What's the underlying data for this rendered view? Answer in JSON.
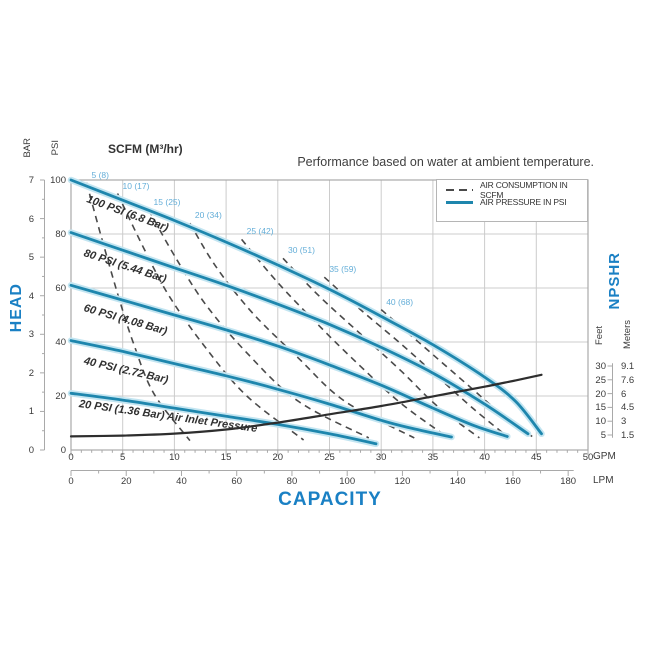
{
  "note": "Performance based on water at ambient temperature.",
  "scfm_title": "SCFM (M³/hr)",
  "legend": {
    "items": [
      {
        "label": "AIR CONSUMPTION IN SCFM",
        "style": "dashed"
      },
      {
        "label": "AIR PRESSURE IN PSI",
        "style": "solid"
      }
    ]
  },
  "colors": {
    "curve_blue": "#1e86ad",
    "halo_blue": "#c3e5f1",
    "label_blue": "#1a80c4",
    "dash_label_blue": "#64aed8",
    "dash_gray": "#4a4a4a",
    "npshr_black": "#2e2e2e",
    "grid": "#cccccc",
    "axis": "#a9a9a9",
    "text": "#3a3a3a"
  },
  "chart_data": {
    "type": "line",
    "title": "Performance based on water at ambient temperature.",
    "x_axis": {
      "label": "CAPACITY",
      "gpm_unit": "GPM",
      "lpm_unit": "LPM",
      "gpm_ticks": [
        0,
        5,
        10,
        15,
        20,
        25,
        30,
        35,
        40,
        45,
        50
      ],
      "lpm_ticks": [
        0,
        20,
        40,
        60,
        80,
        100,
        120,
        140,
        160,
        180
      ],
      "range_gpm": [
        0,
        50
      ],
      "grid": true
    },
    "y_axis": {
      "label": "HEAD",
      "bar_unit": "BAR",
      "psi_unit": "PSI",
      "bar_ticks": [
        0,
        1,
        2,
        3,
        4,
        5,
        6,
        7
      ],
      "psi_ticks": [
        0,
        20,
        40,
        60,
        80,
        100
      ],
      "range_psi": [
        0,
        100
      ]
    },
    "right_axis": {
      "label": "NPSHR",
      "feet_label": "Feet",
      "meters_label": "Meters",
      "feet_ticks": [
        30,
        25,
        20,
        15,
        10,
        5
      ],
      "meters_ticks": [
        "9.1",
        "7.6",
        "6",
        "4.5",
        "3",
        "1.5"
      ]
    },
    "pressure_curves": [
      {
        "label": "100 PSI (6.8 Bar)",
        "points_gpm_psi": [
          [
            0,
            100
          ],
          [
            5,
            92.5
          ],
          [
            10,
            85
          ],
          [
            15,
            77
          ],
          [
            20,
            68.5
          ],
          [
            25,
            59.5
          ],
          [
            30,
            49.5
          ],
          [
            35,
            39
          ],
          [
            40,
            27
          ],
          [
            43,
            18
          ],
          [
            45.5,
            6
          ]
        ]
      },
      {
        "label": "80 PSI (5.44 Bar)",
        "points_gpm_psi": [
          [
            0,
            80.5
          ],
          [
            5,
            74
          ],
          [
            10,
            67.5
          ],
          [
            15,
            61
          ],
          [
            20,
            54
          ],
          [
            25,
            46.5
          ],
          [
            30,
            38
          ],
          [
            35,
            28.5
          ],
          [
            40,
            17
          ],
          [
            44.2,
            6
          ]
        ]
      },
      {
        "label": "60 PSI (4.08 Bar)",
        "points_gpm_psi": [
          [
            0,
            61
          ],
          [
            5,
            55.5
          ],
          [
            10,
            50
          ],
          [
            15,
            44.5
          ],
          [
            20,
            38.5
          ],
          [
            25,
            31.5
          ],
          [
            30,
            24
          ],
          [
            35,
            15.5
          ],
          [
            39,
            9
          ],
          [
            42.2,
            5
          ]
        ]
      },
      {
        "label": "40 PSI (2.72 Bar)",
        "points_gpm_psi": [
          [
            0,
            40.5
          ],
          [
            5,
            36.5
          ],
          [
            10,
            32
          ],
          [
            15,
            27.5
          ],
          [
            20,
            22.5
          ],
          [
            25,
            17
          ],
          [
            30,
            11
          ],
          [
            33,
            8
          ],
          [
            36.8,
            4.8
          ]
        ]
      },
      {
        "label": "20 PSI (1.36 Bar) Air Inlet Pressure",
        "points_gpm_psi": [
          [
            0,
            21
          ],
          [
            5,
            18.5
          ],
          [
            10,
            15.5
          ],
          [
            15,
            12.5
          ],
          [
            20,
            9.5
          ],
          [
            25,
            6
          ],
          [
            29.5,
            2.3
          ]
        ]
      }
    ],
    "consumption_curves": [
      {
        "label": "5 (8)",
        "points_gpm_psi": [
          [
            1.5,
            99
          ],
          [
            3,
            78
          ],
          [
            4.5,
            58
          ],
          [
            6,
            40
          ],
          [
            8,
            21
          ],
          [
            11.5,
            3.5
          ]
        ]
      },
      {
        "label": "10 (17)",
        "points_gpm_psi": [
          [
            4.5,
            95
          ],
          [
            7,
            75
          ],
          [
            9.5,
            57
          ],
          [
            13,
            38
          ],
          [
            17,
            20
          ],
          [
            22.5,
            3.7
          ]
        ]
      },
      {
        "label": "15 (25)",
        "points_gpm_psi": [
          [
            7.5,
            89
          ],
          [
            10,
            72
          ],
          [
            13,
            54
          ],
          [
            17,
            36
          ],
          [
            22,
            18
          ],
          [
            28.8,
            4.5
          ]
        ]
      },
      {
        "label": "20 (34)",
        "points_gpm_psi": [
          [
            11.5,
            84
          ],
          [
            14,
            68
          ],
          [
            17.5,
            51
          ],
          [
            22,
            34
          ],
          [
            26.5,
            18
          ],
          [
            33.2,
            4.5
          ]
        ]
      },
      {
        "label": "25 (42)",
        "points_gpm_psi": [
          [
            16.5,
            78
          ],
          [
            20,
            62
          ],
          [
            24,
            46
          ],
          [
            28,
            31
          ],
          [
            32,
            17
          ],
          [
            36.5,
            4.5
          ]
        ]
      },
      {
        "label": "30 (51)",
        "points_gpm_psi": [
          [
            20.5,
            71
          ],
          [
            24,
            57
          ],
          [
            28,
            43
          ],
          [
            32,
            29
          ],
          [
            35.5,
            16
          ],
          [
            39.5,
            4.5
          ]
        ]
      },
      {
        "label": "35 (59)",
        "points_gpm_psi": [
          [
            24.5,
            64
          ],
          [
            28,
            52
          ],
          [
            32,
            39
          ],
          [
            35.5,
            27
          ],
          [
            39,
            15
          ],
          [
            42.2,
            5
          ]
        ]
      },
      {
        "label": "40 (68)",
        "points_gpm_psi": [
          [
            30,
            52
          ],
          [
            33,
            42
          ],
          [
            36,
            32
          ],
          [
            39,
            22
          ],
          [
            42,
            12
          ],
          [
            44.6,
            5
          ]
        ]
      }
    ],
    "npshr_curve": {
      "points_gpm_feet": [
        [
          0,
          4.5
        ],
        [
          5,
          4.8
        ],
        [
          10,
          5.5
        ],
        [
          15,
          7
        ],
        [
          20,
          9.5
        ],
        [
          25,
          12.5
        ],
        [
          30,
          15.5
        ],
        [
          35,
          19
        ],
        [
          40,
          22.5
        ],
        [
          43,
          24.8
        ],
        [
          45.5,
          26.8
        ]
      ]
    }
  }
}
